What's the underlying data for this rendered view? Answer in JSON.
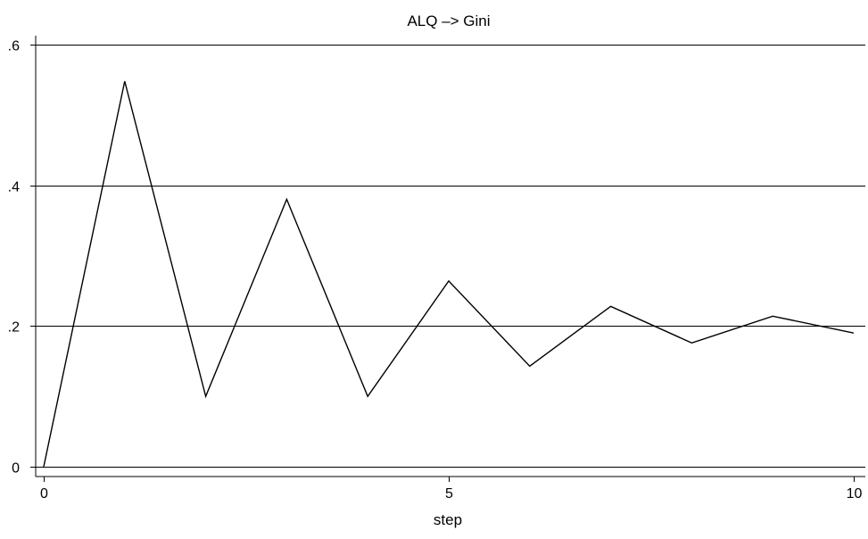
{
  "chart_data": {
    "type": "line",
    "title": "ALQ –> Gini",
    "xlabel": "step",
    "ylabel": "",
    "xlim": [
      0,
      10
    ],
    "ylim": [
      0,
      0.6
    ],
    "x_ticks": [
      {
        "value": 0,
        "label": "0"
      },
      {
        "value": 5,
        "label": "5"
      },
      {
        "value": 10,
        "label": "10"
      }
    ],
    "y_ticks": [
      {
        "value": 0,
        "label": "0"
      },
      {
        "value": 0.2,
        "label": ".2"
      },
      {
        "value": 0.4,
        "label": ".4"
      },
      {
        "value": 0.6,
        "label": ".6"
      }
    ],
    "grid": "horizontal",
    "legend": "none",
    "series": [
      {
        "x": [
          0,
          1,
          2,
          3,
          4,
          5,
          6,
          7,
          8,
          9,
          10
        ],
        "y": [
          0,
          0.548,
          0.1,
          0.38,
          0.1,
          0.264,
          0.143,
          0.228,
          0.176,
          0.214,
          0.19
        ],
        "color": "#000000"
      }
    ]
  }
}
